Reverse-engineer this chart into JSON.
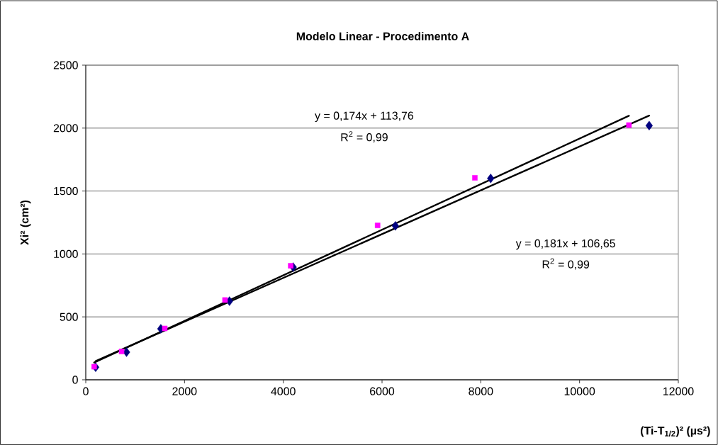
{
  "chart_data": {
    "type": "scatter",
    "title": "Modelo Linear - Procedimento A",
    "xlabel": "(Ti-T$_{1/2}$)² (µs²)",
    "ylabel": "Xi² (cm²)",
    "xlim": [
      0,
      12000
    ],
    "ylim": [
      0,
      2500
    ],
    "xticks": [
      0,
      2000,
      4000,
      6000,
      8000,
      10000,
      12000
    ],
    "yticks": [
      0,
      500,
      1000,
      1500,
      2000,
      2500
    ],
    "grid": "y",
    "series": [
      {
        "color": "#000080",
        "marker": "diamond",
        "x": [
          200,
          825,
          1520,
          2910,
          4200,
          6270,
          8200,
          11410
        ],
        "values": [
          100,
          220,
          405,
          625,
          895,
          1223,
          1600,
          2020
        ]
      },
      {
        "color": "#ff00ff",
        "marker": "square",
        "x": [
          170,
          725,
          1600,
          2820,
          4150,
          5910,
          7880,
          11000
        ],
        "values": [
          104,
          225,
          408,
          634,
          906,
          1227,
          1605,
          2024
        ]
      },
      {
        "type": "line",
        "color": "#000000",
        "x": [
          200,
          11410
        ],
        "values": [
          149,
          2099
        ]
      },
      {
        "type": "line",
        "color": "#000000",
        "x": [
          170,
          11000
        ],
        "values": [
          137,
          2098
        ]
      }
    ],
    "annotations": [
      "y = 0,174x + 113,76",
      "R$^{2}$ = 0,99",
      "y = 0,181x + 106,65",
      "R$^{2}$ = 0,99"
    ]
  }
}
